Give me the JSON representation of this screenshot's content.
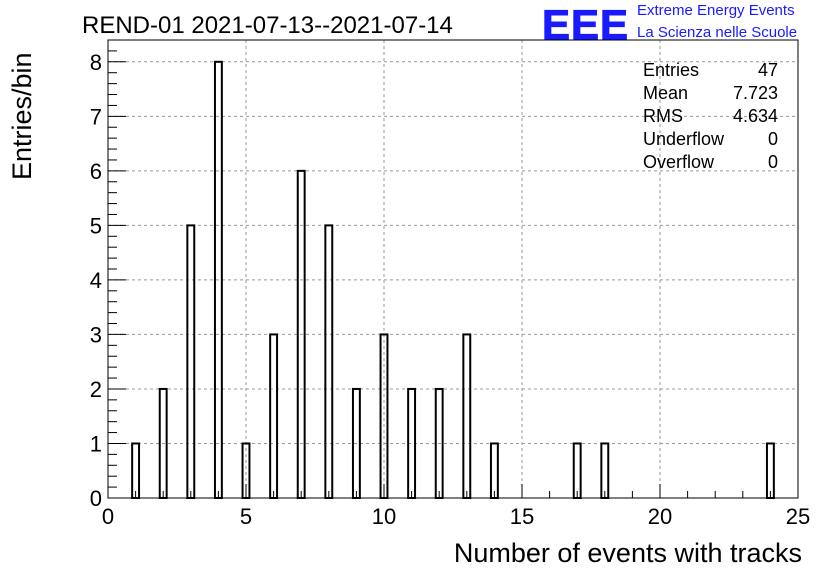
{
  "header": {
    "title": "REND-01 2021-07-13--2021-07-14",
    "logo_mark": "EEE",
    "logo_line1": "Extreme Energy Events",
    "logo_line2": "La Scienza nelle Scuole"
  },
  "stats": [
    {
      "label": "Entries",
      "value": "47"
    },
    {
      "label": "Mean",
      "value": "7.723"
    },
    {
      "label": "RMS",
      "value": "4.634"
    },
    {
      "label": "Underflow",
      "value": "0"
    },
    {
      "label": "Overflow",
      "value": "0"
    }
  ],
  "colors": {
    "logo": "#1a1aff",
    "bars": "#000000",
    "grid": "#999999"
  },
  "chart_data": {
    "type": "bar",
    "xlabel": "Number of events with tracks",
    "ylabel": "Entries/bin",
    "xlim": [
      0,
      25
    ],
    "ylim": [
      0,
      8.4
    ],
    "bin_width": 0.25,
    "bins": [
      {
        "x": 1,
        "count": 1
      },
      {
        "x": 2,
        "count": 2
      },
      {
        "x": 3,
        "count": 5
      },
      {
        "x": 4,
        "count": 8
      },
      {
        "x": 5,
        "count": 1
      },
      {
        "x": 6,
        "count": 3
      },
      {
        "x": 7,
        "count": 6
      },
      {
        "x": 8,
        "count": 5
      },
      {
        "x": 9,
        "count": 2
      },
      {
        "x": 10,
        "count": 3
      },
      {
        "x": 11,
        "count": 2
      },
      {
        "x": 12,
        "count": 2
      },
      {
        "x": 13,
        "count": 3
      },
      {
        "x": 14,
        "count": 1
      },
      {
        "x": 17,
        "count": 1
      },
      {
        "x": 18,
        "count": 1
      },
      {
        "x": 24,
        "count": 1
      }
    ],
    "x_ticks": [
      0,
      5,
      10,
      15,
      20,
      25
    ],
    "y_ticks": [
      0,
      1,
      2,
      3,
      4,
      5,
      6,
      7,
      8
    ],
    "grid": true
  }
}
